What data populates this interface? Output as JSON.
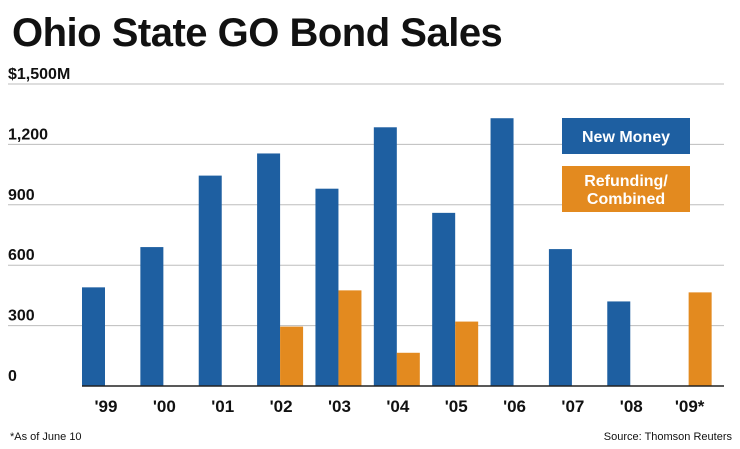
{
  "chart_data": {
    "type": "bar",
    "title": "Ohio State GO Bond Sales",
    "xlabel": "",
    "ylabel": "",
    "categories": [
      "'99",
      "'00",
      "'01",
      "'02",
      "'03",
      "'04",
      "'05",
      "'06",
      "'07",
      "'08",
      "'09*"
    ],
    "series": [
      {
        "name": "New Money",
        "color": "#1e5fa1",
        "values": [
          490,
          690,
          1045,
          1155,
          980,
          1285,
          860,
          1330,
          680,
          420,
          0
        ]
      },
      {
        "name": "Refunding/ Combined",
        "color": "#e38a1f",
        "legend_lines": [
          "Refunding/",
          "Combined"
        ],
        "values": [
          0,
          0,
          0,
          295,
          475,
          165,
          320,
          0,
          0,
          0,
          465
        ]
      }
    ],
    "yticks": [
      "0",
      "300",
      "600",
      "900",
      "1,200",
      "$1,500M"
    ],
    "ytick_values": [
      0,
      300,
      600,
      900,
      1200,
      1500
    ],
    "ylim": [
      0,
      1500
    ],
    "grid": true,
    "legend": "top-right",
    "footnote": "*As of June 10",
    "source": "Source: Thomson Reuters"
  }
}
